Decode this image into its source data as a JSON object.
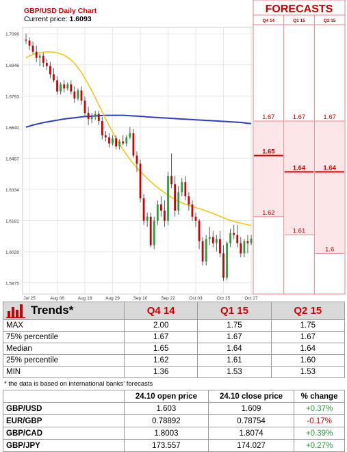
{
  "chart_data": {
    "type": "candlestick",
    "title": "GBP/USD Daily Chart",
    "current_price_label": "Current price:",
    "current_price": "1.6093",
    "y_ticks": [
      "1.7099",
      "1.6946",
      "1.6793",
      "1.6640",
      "1.6487",
      "1.6334",
      "1.6181",
      "1.6028",
      "1.5875"
    ],
    "y_tick_values": [
      1.7099,
      1.6946,
      1.6793,
      1.664,
      1.6487,
      1.6334,
      1.6181,
      1.6028,
      1.5875
    ],
    "ylim": [
      1.582,
      1.713
    ],
    "x_ticks": [
      "Jul 25",
      "Aug 06",
      "Aug 18",
      "Aug 29",
      "Sep 10",
      "Sep 22",
      "Oct 03",
      "Oct 15",
      "Oct 27"
    ],
    "x_tick_index": [
      1,
      9,
      17,
      25,
      33,
      41,
      49,
      57,
      65
    ],
    "candles": [
      {
        "o": 1.707,
        "h": 1.7099,
        "l": 1.705,
        "c": 1.7065
      },
      {
        "o": 1.7065,
        "h": 1.708,
        "l": 1.702,
        "c": 1.704
      },
      {
        "o": 1.704,
        "h": 1.706,
        "l": 1.7,
        "c": 1.701
      },
      {
        "o": 1.701,
        "h": 1.704,
        "l": 1.696,
        "c": 1.698
      },
      {
        "o": 1.698,
        "h": 1.7,
        "l": 1.694,
        "c": 1.699
      },
      {
        "o": 1.699,
        "h": 1.7005,
        "l": 1.6935,
        "c": 1.6955
      },
      {
        "o": 1.6955,
        "h": 1.6975,
        "l": 1.692,
        "c": 1.694
      },
      {
        "o": 1.694,
        "h": 1.696,
        "l": 1.688,
        "c": 1.69
      },
      {
        "o": 1.69,
        "h": 1.693,
        "l": 1.686,
        "c": 1.687
      },
      {
        "o": 1.687,
        "h": 1.689,
        "l": 1.68,
        "c": 1.6815
      },
      {
        "o": 1.6815,
        "h": 1.686,
        "l": 1.68,
        "c": 1.685
      },
      {
        "o": 1.685,
        "h": 1.687,
        "l": 1.681,
        "c": 1.683
      },
      {
        "o": 1.683,
        "h": 1.686,
        "l": 1.682,
        "c": 1.685
      },
      {
        "o": 1.685,
        "h": 1.687,
        "l": 1.68,
        "c": 1.6815
      },
      {
        "o": 1.6815,
        "h": 1.684,
        "l": 1.676,
        "c": 1.678
      },
      {
        "o": 1.678,
        "h": 1.683,
        "l": 1.677,
        "c": 1.682
      },
      {
        "o": 1.682,
        "h": 1.684,
        "l": 1.675,
        "c": 1.677
      },
      {
        "o": 1.677,
        "h": 1.679,
        "l": 1.669,
        "c": 1.671
      },
      {
        "o": 1.671,
        "h": 1.674,
        "l": 1.665,
        "c": 1.668
      },
      {
        "o": 1.668,
        "h": 1.671,
        "l": 1.666,
        "c": 1.669
      },
      {
        "o": 1.669,
        "h": 1.672,
        "l": 1.6675,
        "c": 1.6705
      },
      {
        "o": 1.6705,
        "h": 1.672,
        "l": 1.665,
        "c": 1.667
      },
      {
        "o": 1.667,
        "h": 1.669,
        "l": 1.658,
        "c": 1.66
      },
      {
        "o": 1.66,
        "h": 1.662,
        "l": 1.657,
        "c": 1.659
      },
      {
        "o": 1.659,
        "h": 1.661,
        "l": 1.654,
        "c": 1.656
      },
      {
        "o": 1.656,
        "h": 1.66,
        "l": 1.655,
        "c": 1.6585
      },
      {
        "o": 1.6585,
        "h": 1.66,
        "l": 1.653,
        "c": 1.6545
      },
      {
        "o": 1.6545,
        "h": 1.658,
        "l": 1.653,
        "c": 1.657
      },
      {
        "o": 1.657,
        "h": 1.66,
        "l": 1.655,
        "c": 1.656
      },
      {
        "o": 1.656,
        "h": 1.66,
        "l": 1.6545,
        "c": 1.659
      },
      {
        "o": 1.659,
        "h": 1.664,
        "l": 1.658,
        "c": 1.661
      },
      {
        "o": 1.661,
        "h": 1.663,
        "l": 1.649,
        "c": 1.65
      },
      {
        "o": 1.65,
        "h": 1.652,
        "l": 1.642,
        "c": 1.646
      },
      {
        "o": 1.646,
        "h": 1.648,
        "l": 1.627,
        "c": 1.629
      },
      {
        "o": 1.629,
        "h": 1.631,
        "l": 1.616,
        "c": 1.618
      },
      {
        "o": 1.618,
        "h": 1.622,
        "l": 1.615,
        "c": 1.62
      },
      {
        "o": 1.62,
        "h": 1.622,
        "l": 1.605,
        "c": 1.606
      },
      {
        "o": 1.606,
        "h": 1.62,
        "l": 1.604,
        "c": 1.618
      },
      {
        "o": 1.618,
        "h": 1.628,
        "l": 1.616,
        "c": 1.626
      },
      {
        "o": 1.626,
        "h": 1.63,
        "l": 1.62,
        "c": 1.623
      },
      {
        "o": 1.623,
        "h": 1.628,
        "l": 1.615,
        "c": 1.618
      },
      {
        "o": 1.618,
        "h": 1.642,
        "l": 1.616,
        "c": 1.64
      },
      {
        "o": 1.64,
        "h": 1.651,
        "l": 1.634,
        "c": 1.636
      },
      {
        "o": 1.636,
        "h": 1.64,
        "l": 1.62,
        "c": 1.623
      },
      {
        "o": 1.623,
        "h": 1.635,
        "l": 1.621,
        "c": 1.632
      },
      {
        "o": 1.632,
        "h": 1.639,
        "l": 1.63,
        "c": 1.637
      },
      {
        "o": 1.637,
        "h": 1.64,
        "l": 1.628,
        "c": 1.63
      },
      {
        "o": 1.63,
        "h": 1.632,
        "l": 1.623,
        "c": 1.626
      },
      {
        "o": 1.626,
        "h": 1.628,
        "l": 1.618,
        "c": 1.62
      },
      {
        "o": 1.62,
        "h": 1.622,
        "l": 1.615,
        "c": 1.618
      },
      {
        "o": 1.618,
        "h": 1.619,
        "l": 1.604,
        "c": 1.608
      },
      {
        "o": 1.608,
        "h": 1.61,
        "l": 1.596,
        "c": 1.598
      },
      {
        "o": 1.598,
        "h": 1.611,
        "l": 1.596,
        "c": 1.609
      },
      {
        "o": 1.609,
        "h": 1.615,
        "l": 1.606,
        "c": 1.61
      },
      {
        "o": 1.61,
        "h": 1.613,
        "l": 1.605,
        "c": 1.607
      },
      {
        "o": 1.607,
        "h": 1.611,
        "l": 1.603,
        "c": 1.609
      },
      {
        "o": 1.609,
        "h": 1.613,
        "l": 1.6,
        "c": 1.602
      },
      {
        "o": 1.602,
        "h": 1.606,
        "l": 1.5885,
        "c": 1.59
      },
      {
        "o": 1.59,
        "h": 1.608,
        "l": 1.589,
        "c": 1.607
      },
      {
        "o": 1.607,
        "h": 1.614,
        "l": 1.605,
        "c": 1.612
      },
      {
        "o": 1.612,
        "h": 1.616,
        "l": 1.609,
        "c": 1.611
      },
      {
        "o": 1.611,
        "h": 1.616,
        "l": 1.605,
        "c": 1.607
      },
      {
        "o": 1.607,
        "h": 1.61,
        "l": 1.6,
        "c": 1.602
      },
      {
        "o": 1.602,
        "h": 1.609,
        "l": 1.6,
        "c": 1.608
      },
      {
        "o": 1.608,
        "h": 1.611,
        "l": 1.602,
        "c": 1.607
      },
      {
        "o": 1.607,
        "h": 1.611,
        "l": 1.606,
        "c": 1.6093
      }
    ],
    "ma_yellow": [
      1.698,
      1.699,
      1.6996,
      1.7002,
      1.7006,
      1.7008,
      1.701,
      1.7009,
      1.7008,
      1.7005,
      1.7,
      1.6993,
      1.6983,
      1.697,
      1.6953,
      1.6932,
      1.6908,
      1.688,
      1.685,
      1.6818,
      1.6785,
      1.675,
      1.6715,
      1.668,
      1.6647,
      1.6615,
      1.6585,
      1.6557,
      1.653,
      1.6505,
      1.6482,
      1.646,
      1.644,
      1.6422,
      1.6405,
      1.6388,
      1.6372,
      1.6357,
      1.6343,
      1.633,
      1.6318,
      1.6306,
      1.6295,
      1.6285,
      1.6276,
      1.6268,
      1.6261,
      1.6255,
      1.625,
      1.6245,
      1.624,
      1.6234,
      1.6228,
      1.6222,
      1.6216,
      1.6209,
      1.6202,
      1.6195,
      1.6188,
      1.6182,
      1.6177,
      1.6172,
      1.6168,
      1.6164,
      1.616,
      1.6157
    ],
    "ma_blue": [
      1.664,
      1.6645,
      1.665,
      1.6654,
      1.6658,
      1.6662,
      1.6665,
      1.6668,
      1.6671,
      1.6674,
      1.6677,
      1.668,
      1.6682,
      1.6684,
      1.6686,
      1.6688,
      1.669,
      1.6692,
      1.6693,
      1.6694,
      1.6695,
      1.6696,
      1.6697,
      1.6698,
      1.6698,
      1.6698,
      1.6698,
      1.6698,
      1.6698,
      1.6697,
      1.6696,
      1.6695,
      1.6694,
      1.6693,
      1.6692,
      1.669,
      1.6689,
      1.6688,
      1.6687,
      1.6686,
      1.6685,
      1.6684,
      1.6683,
      1.6682,
      1.6681,
      1.668,
      1.6679,
      1.6678,
      1.6677,
      1.6676,
      1.6675,
      1.6674,
      1.6673,
      1.6672,
      1.6671,
      1.667,
      1.6669,
      1.6668,
      1.6667,
      1.6666,
      1.6665,
      1.6664,
      1.6663,
      1.6661,
      1.6659,
      1.6657
    ],
    "colors": {
      "up": "#2e9b3a",
      "down": "#cc0000",
      "ma_yellow": "#f5c518",
      "ma_blue": "#2b3cc4",
      "forecast_bg": "#fde6e8",
      "forecast_border": "#e8818a",
      "forecast_title": "#cc0000"
    }
  },
  "forecasts": {
    "title": "FORECASTS",
    "columns": [
      "Q4 14",
      "Q1 15",
      "Q2 15"
    ],
    "top_values": [
      "1.67",
      "1.67",
      "1.67"
    ],
    "top_value_levels": [
      1.667,
      1.667,
      1.667
    ],
    "median_values": [
      "1.65",
      "1.64",
      "1.64"
    ],
    "median_value_levels": [
      1.65,
      1.642,
      1.642
    ],
    "bottom_values": [
      "1.62",
      "1.61",
      "1.6"
    ],
    "bottom_value_levels": [
      1.62,
      1.611,
      1.602
    ]
  },
  "trends": {
    "header": "Trends*",
    "columns": [
      "Q4 14",
      "Q1 15",
      "Q2 15"
    ],
    "rows": [
      {
        "label": "MAX",
        "values": [
          "2.00",
          "1.75",
          "1.75"
        ]
      },
      {
        "label": "75% percentile",
        "values": [
          "1.67",
          "1.67",
          "1.67"
        ]
      },
      {
        "label": "Median",
        "values": [
          "1.65",
          "1.64",
          "1.64"
        ]
      },
      {
        "label": "25% percentile",
        "values": [
          "1.62",
          "1.61",
          "1.60"
        ]
      },
      {
        "label": "MIN",
        "values": [
          "1.36",
          "1.53",
          "1.53"
        ]
      }
    ],
    "note": "* the data is based on international banks' forecasts"
  },
  "prices": {
    "columns": [
      "",
      "24.10 open price",
      "24.10 close price",
      "% change"
    ],
    "rows": [
      {
        "pair": "GBP/USD",
        "open": "1.603",
        "close": "1.609",
        "change": "+0.37%",
        "dir": "pos"
      },
      {
        "pair": "EUR/GBP",
        "open": "0.78892",
        "close": "0.78754",
        "change": "-0.17%",
        "dir": "neg"
      },
      {
        "pair": "GBP/CAD",
        "open": "1.8003",
        "close": "1.8074",
        "change": "+0.39%",
        "dir": "pos"
      },
      {
        "pair": "GBP/JPY",
        "open": "173.557",
        "close": "174.027",
        "change": "+0.27%",
        "dir": "pos"
      }
    ]
  }
}
